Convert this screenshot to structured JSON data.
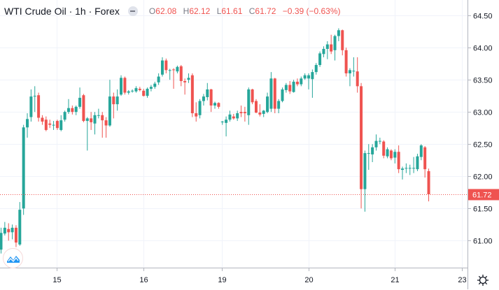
{
  "header": {
    "title": "WTI Crude Oil · 1h · Forex",
    "open_label": "O",
    "open": "62.08",
    "high_label": "H",
    "high": "62.12",
    "low_label": "L",
    "low": "61.61",
    "close_label": "C",
    "close": "61.72",
    "change": "−0.39 (−0.63%)"
  },
  "colors": {
    "up": "#26a69a",
    "down": "#ef5350",
    "grid": "#f0f3fa",
    "axis": "#787b86",
    "last_price": "#ef5350"
  },
  "icons": {
    "collapse": "minus-circle-icon",
    "logo": "tradingview-logo-icon",
    "settings": "gear-icon"
  },
  "chart_data": {
    "type": "candlestick",
    "title": "WTI Crude Oil · 1h · Forex",
    "xlabel": "",
    "ylabel": "",
    "ylim": [
      60.58,
      64.74
    ],
    "y_ticks": [
      "64.50",
      "64.00",
      "63.50",
      "63.00",
      "62.50",
      "62.00",
      "61.50",
      "61.00"
    ],
    "x_ticks": [
      {
        "index": 15,
        "label": "15"
      },
      {
        "index": 38,
        "label": "16"
      },
      {
        "index": 59,
        "label": "19"
      },
      {
        "index": 82,
        "label": "20"
      },
      {
        "index": 105,
        "label": "21"
      },
      {
        "index": 123,
        "label": "23"
      }
    ],
    "x_count": 125,
    "last_price": 61.72,
    "last_price_label": "61.72",
    "grid": true,
    "ohlc": [
      [
        60.86,
        61.2,
        60.8,
        61.12
      ],
      [
        61.11,
        61.29,
        61.08,
        61.2
      ],
      [
        61.18,
        61.27,
        61.0,
        61.13
      ],
      [
        61.13,
        61.25,
        61.02,
        61.2
      ],
      [
        61.2,
        61.24,
        60.9,
        60.97
      ],
      [
        60.94,
        61.6,
        60.92,
        61.48
      ],
      [
        61.5,
        62.8,
        61.4,
        62.76
      ],
      [
        62.76,
        62.98,
        62.6,
        62.89
      ],
      [
        62.92,
        63.35,
        62.85,
        63.24
      ],
      [
        63.24,
        63.4,
        63.0,
        63.25
      ],
      [
        63.26,
        63.3,
        62.85,
        62.91
      ],
      [
        62.91,
        62.95,
        62.8,
        62.85
      ],
      [
        62.88,
        62.93,
        62.7,
        62.72
      ],
      [
        62.82,
        62.88,
        62.75,
        62.8
      ],
      [
        62.79,
        62.86,
        62.72,
        62.8
      ],
      [
        62.86,
        62.88,
        62.72,
        62.75
      ],
      [
        62.72,
        62.95,
        62.7,
        62.87
      ],
      [
        62.88,
        63.02,
        62.85,
        63.0
      ],
      [
        63.0,
        63.2,
        62.97,
        63.06
      ],
      [
        63.06,
        63.1,
        62.96,
        63.0
      ],
      [
        63.0,
        63.1,
        62.95,
        63.08
      ],
      [
        63.08,
        63.38,
        63.05,
        63.22
      ],
      [
        63.26,
        63.28,
        62.84,
        62.86
      ],
      [
        62.86,
        62.92,
        62.4,
        62.9
      ],
      [
        62.9,
        63.0,
        62.72,
        62.84
      ],
      [
        62.82,
        63.0,
        62.65,
        62.95
      ],
      [
        62.94,
        63.05,
        62.9,
        62.95
      ],
      [
        62.95,
        63.0,
        62.6,
        62.87
      ],
      [
        62.87,
        62.92,
        62.6,
        62.79
      ],
      [
        62.79,
        63.5,
        62.77,
        63.24
      ],
      [
        63.24,
        63.3,
        62.9,
        63.12
      ],
      [
        63.12,
        63.35,
        63.02,
        63.24
      ],
      [
        63.27,
        63.57,
        63.25,
        63.53
      ],
      [
        63.53,
        63.55,
        63.27,
        63.3
      ],
      [
        63.3,
        63.34,
        63.27,
        63.32
      ],
      [
        63.32,
        63.35,
        63.3,
        63.33
      ],
      [
        63.32,
        63.4,
        63.3,
        63.37
      ],
      [
        63.36,
        63.39,
        63.32,
        63.34
      ],
      [
        63.33,
        63.36,
        63.24,
        63.25
      ],
      [
        63.25,
        63.38,
        63.22,
        63.36
      ],
      [
        63.36,
        63.42,
        63.32,
        63.39
      ],
      [
        63.39,
        63.47,
        63.36,
        63.44
      ],
      [
        63.46,
        63.6,
        63.42,
        63.55
      ],
      [
        63.58,
        63.85,
        63.55,
        63.8
      ],
      [
        63.8,
        63.83,
        63.6,
        63.65
      ],
      [
        63.64,
        63.67,
        63.5,
        63.65
      ],
      [
        63.66,
        63.68,
        63.36,
        63.65
      ],
      [
        63.63,
        63.72,
        63.6,
        63.7
      ],
      [
        63.71,
        63.73,
        63.4,
        63.48
      ],
      [
        63.48,
        63.52,
        63.27,
        63.46
      ],
      [
        63.5,
        63.6,
        63.45,
        63.53
      ],
      [
        63.57,
        63.6,
        62.92,
        62.98
      ],
      [
        62.98,
        63.15,
        62.85,
        62.93
      ],
      [
        62.95,
        63.2,
        62.9,
        63.17
      ],
      [
        63.17,
        63.28,
        63.1,
        63.24
      ],
      [
        63.23,
        63.45,
        63.18,
        63.35
      ],
      [
        63.35,
        63.36,
        63.0,
        63.1
      ],
      [
        63.1,
        63.16,
        63.05,
        63.14
      ],
      [
        63.14,
        63.15,
        63.05,
        63.08
      ],
      [
        62.84,
        62.86,
        62.8,
        62.85
      ],
      [
        62.83,
        62.93,
        62.62,
        62.88
      ],
      [
        62.88,
        63.02,
        62.85,
        62.96
      ],
      [
        62.93,
        62.97,
        62.88,
        62.9
      ],
      [
        62.9,
        63.02,
        62.86,
        62.98
      ],
      [
        63.0,
        63.1,
        62.92,
        62.98
      ],
      [
        63.0,
        63.08,
        62.85,
        62.98
      ],
      [
        62.95,
        63.38,
        62.8,
        63.35
      ],
      [
        63.35,
        63.36,
        63.12,
        63.15
      ],
      [
        63.17,
        63.2,
        62.98,
        62.99
      ],
      [
        62.99,
        63.12,
        62.93,
        62.96
      ],
      [
        62.97,
        63.03,
        62.92,
        63.02
      ],
      [
        63.0,
        63.3,
        62.98,
        63.24
      ],
      [
        63.05,
        63.62,
        63.0,
        63.52
      ],
      [
        63.52,
        63.53,
        62.98,
        63.05
      ],
      [
        63.05,
        63.2,
        62.98,
        63.17
      ],
      [
        63.17,
        63.38,
        63.15,
        63.35
      ],
      [
        63.34,
        63.45,
        63.3,
        63.42
      ],
      [
        63.42,
        63.48,
        63.28,
        63.32
      ],
      [
        63.31,
        63.5,
        63.3,
        63.47
      ],
      [
        63.47,
        63.52,
        63.4,
        63.43
      ],
      [
        63.43,
        63.55,
        63.4,
        63.52
      ],
      [
        63.52,
        63.6,
        63.5,
        63.57
      ],
      [
        63.52,
        63.6,
        63.35,
        63.57
      ],
      [
        63.51,
        63.66,
        63.22,
        63.62
      ],
      [
        63.62,
        63.76,
        63.58,
        63.73
      ],
      [
        63.73,
        63.94,
        63.7,
        63.91
      ],
      [
        63.9,
        64.02,
        63.85,
        63.98
      ],
      [
        63.98,
        64.1,
        63.82,
        64.05
      ],
      [
        64.05,
        64.2,
        63.9,
        63.94
      ],
      [
        63.96,
        64.2,
        63.8,
        64.18
      ],
      [
        64.18,
        64.3,
        64.1,
        64.27
      ],
      [
        64.27,
        64.28,
        63.88,
        63.96
      ],
      [
        63.96,
        64.0,
        63.55,
        63.6
      ],
      [
        63.6,
        63.68,
        63.4,
        63.65
      ],
      [
        63.64,
        63.85,
        63.55,
        63.64
      ],
      [
        63.63,
        63.85,
        63.3,
        63.4
      ],
      [
        63.4,
        63.45,
        61.5,
        61.8
      ],
      [
        61.8,
        62.4,
        61.45,
        62.36
      ],
      [
        62.35,
        62.5,
        62.1,
        62.36
      ],
      [
        62.34,
        62.5,
        62.22,
        62.45
      ],
      [
        62.45,
        62.65,
        62.4,
        62.55
      ],
      [
        62.55,
        62.6,
        62.5,
        62.55
      ],
      [
        62.54,
        62.56,
        62.28,
        62.32
      ],
      [
        62.31,
        62.45,
        62.28,
        62.42
      ],
      [
        62.4,
        62.42,
        62.25,
        62.28
      ],
      [
        62.29,
        62.42,
        62.2,
        62.38
      ],
      [
        62.38,
        62.48,
        62.05,
        62.11
      ],
      [
        62.1,
        62.15,
        61.95,
        62.12
      ],
      [
        62.12,
        62.2,
        62.05,
        62.13
      ],
      [
        62.12,
        62.18,
        62.02,
        62.13
      ],
      [
        62.12,
        62.3,
        62.05,
        62.13
      ],
      [
        62.11,
        62.35,
        62.08,
        62.31
      ],
      [
        62.3,
        62.5,
        62.25,
        62.48
      ],
      [
        62.45,
        62.47,
        61.98,
        62.11
      ],
      [
        62.08,
        62.12,
        61.61,
        61.72
      ]
    ]
  }
}
